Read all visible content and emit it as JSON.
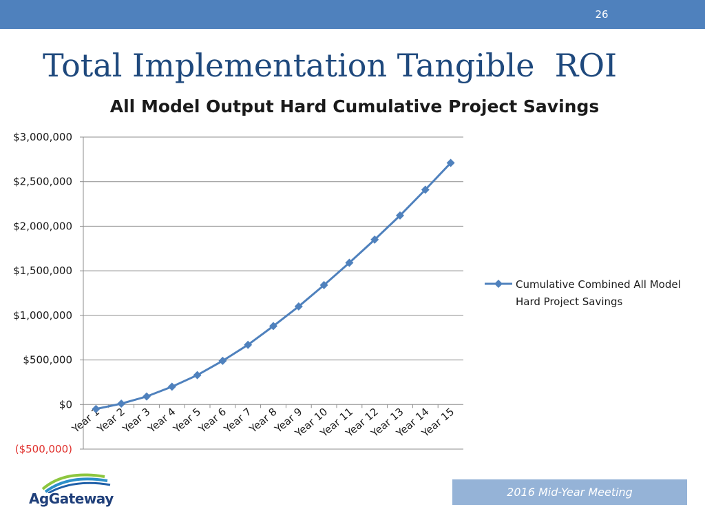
{
  "slide": {
    "number": "26",
    "title": "Total Implementation Tangible  ROI",
    "footer": "2016 Mid-Year Meeting",
    "logo_text": "AgGateway",
    "accent_color": "#4f81bd",
    "title_color": "#1f497d"
  },
  "chart_data": {
    "type": "line",
    "title": "All Model Output Hard Cumulative Project Savings",
    "xlabel": "",
    "ylabel": "",
    "ylim": [
      -500000,
      3000000
    ],
    "y_ticks": [
      {
        "value": -500000,
        "label": "($500,000)",
        "negative": true
      },
      {
        "value": 0,
        "label": "$0"
      },
      {
        "value": 500000,
        "label": "$500,000"
      },
      {
        "value": 1000000,
        "label": "$1,000,000"
      },
      {
        "value": 1500000,
        "label": "$1,500,000"
      },
      {
        "value": 2000000,
        "label": "$2,000,000"
      },
      {
        "value": 2500000,
        "label": "$2,500,000"
      },
      {
        "value": 3000000,
        "label": "$3,000,000"
      }
    ],
    "categories": [
      "Year 1",
      "Year 2",
      "Year 3",
      "Year 4",
      "Year 5",
      "Year 6",
      "Year 7",
      "Year 8",
      "Year 9",
      "Year 10",
      "Year 11",
      "Year 12",
      "Year 13",
      "Year 14",
      "Year 15"
    ],
    "grid": true,
    "legend_position": "right",
    "series": [
      {
        "name": "Cumulative Combined All Model Hard Project Savings",
        "legend_lines": [
          "Cumulative Combined All Model",
          "Hard Project Savings"
        ],
        "color": "#4f81bd",
        "marker": "diamond",
        "values": [
          -50000,
          10000,
          90000,
          200000,
          330000,
          490000,
          670000,
          880000,
          1100000,
          1340000,
          1590000,
          1850000,
          2120000,
          2410000,
          2710000
        ]
      }
    ]
  }
}
